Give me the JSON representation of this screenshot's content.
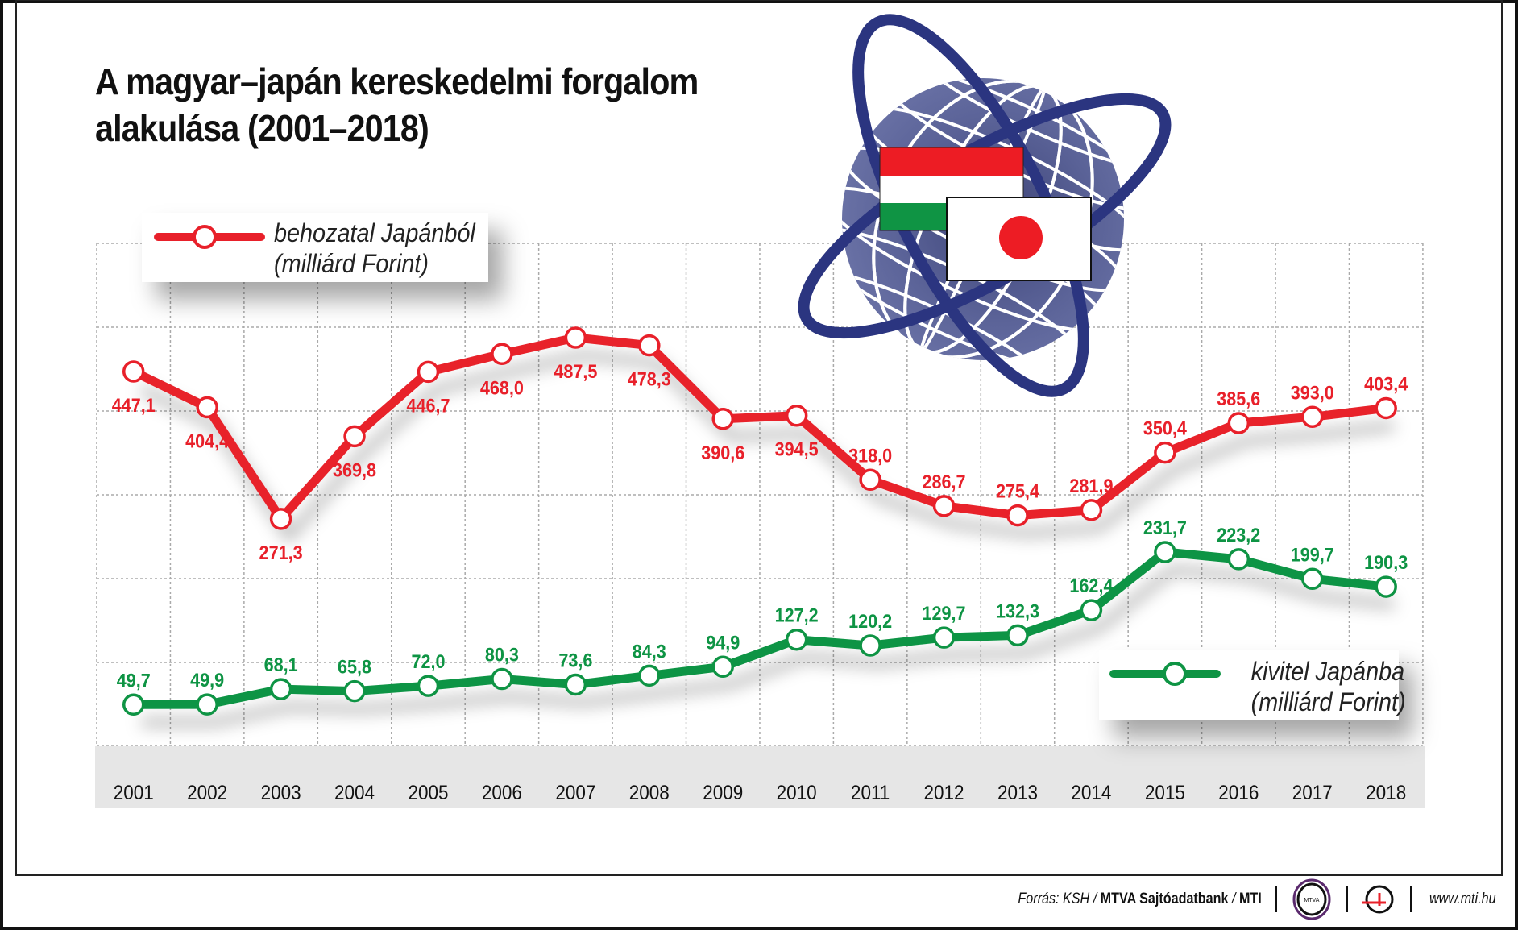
{
  "title_line1": "A magyar–japán kereskedelmi forgalom",
  "title_line2": "alakulása (2001–2018)",
  "chart_data": {
    "type": "line",
    "title": "A magyar–japán kereskedelmi forgalom alakulása (2001–2018)",
    "categories": [
      "2001",
      "2002",
      "2003",
      "2004",
      "2005",
      "2006",
      "2007",
      "2008",
      "2009",
      "2010",
      "2011",
      "2012",
      "2013",
      "2014",
      "2015",
      "2016",
      "2017",
      "2018"
    ],
    "ylim": [
      0,
      600
    ],
    "grid": true,
    "series": [
      {
        "name": "behozatal Japánból (milliárd Forint)",
        "color": "#e8202a",
        "values": [
          447.1,
          404.4,
          271.3,
          369.8,
          446.7,
          468.0,
          487.5,
          478.3,
          390.6,
          394.5,
          318.0,
          286.7,
          275.4,
          281.9,
          350.4,
          385.6,
          393.0,
          403.4
        ],
        "labels": [
          "447,1",
          "404,4",
          "271,3",
          "369,8",
          "446,7",
          "468,0",
          "487,5",
          "478,3",
          "390,6",
          "394,5",
          "318,0",
          "286,7",
          "275,4",
          "281,9",
          "350,4",
          "385,6",
          "393,0",
          "403,4"
        ]
      },
      {
        "name": "kivitel Japánba (milliárd Forint)",
        "color": "#0e9444",
        "values": [
          49.7,
          49.9,
          68.1,
          65.8,
          72.0,
          80.3,
          73.6,
          84.3,
          94.9,
          127.2,
          120.2,
          129.7,
          132.3,
          162.4,
          231.7,
          223.2,
          199.7,
          190.3
        ],
        "labels": [
          "49,7",
          "49,9",
          "68,1",
          "65,8",
          "72,0",
          "80,3",
          "73,6",
          "84,3",
          "94,9",
          "127,2",
          "120,2",
          "129,7",
          "132,3",
          "162,4",
          "231,7",
          "223,2",
          "199,7",
          "190,3"
        ]
      }
    ]
  },
  "legend": {
    "import_line1": "behozatal Japánból",
    "import_line2": "(milliárd Forint)",
    "export_line1": "kivitel Japánba",
    "export_line2": "(milliárd Forint)"
  },
  "footer": {
    "source_prefix": "Forrás: KSH / ",
    "source_bold": "MTVA Sajtóadatbank",
    "source_sep": " / ",
    "source_mti": "MTI",
    "logo_text": "MTVA",
    "url": "www.mti.hu"
  },
  "colors": {
    "globe": "#5b6398",
    "orbit": "#2b3580",
    "hu_red": "#ed1c24",
    "hu_green": "#0f9444",
    "jp_red": "#ed1c24"
  }
}
